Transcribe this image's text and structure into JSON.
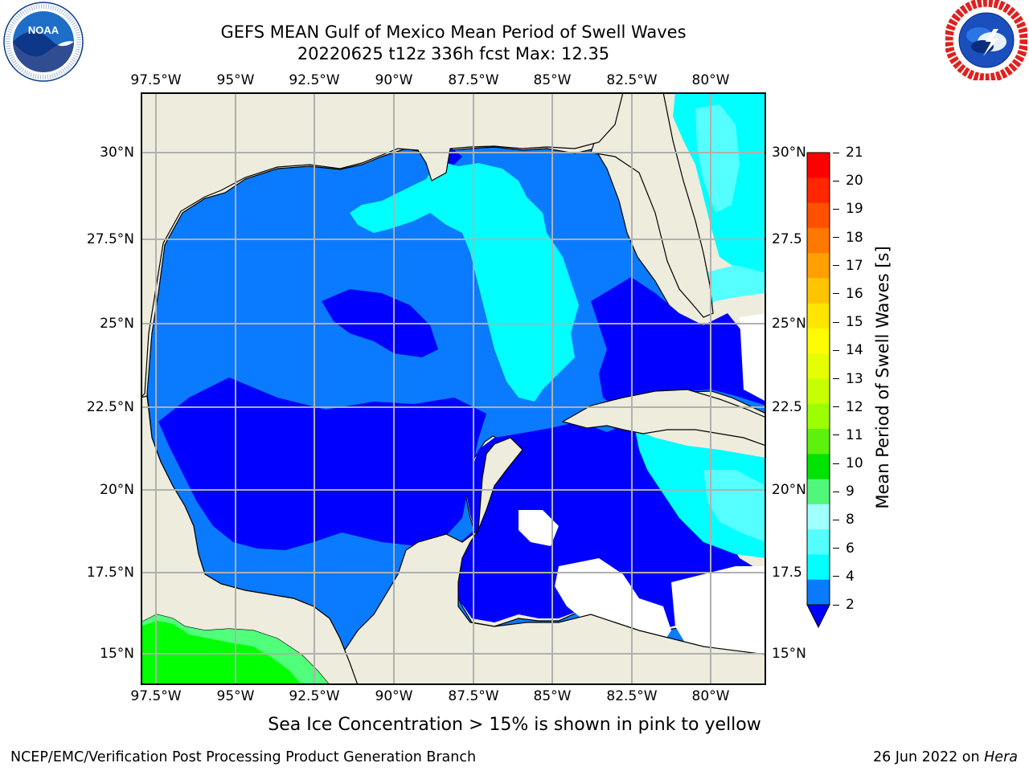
{
  "title": {
    "line1": "GEFS MEAN Gulf of Mexico Mean Period of Swell Waves",
    "line2": "20220625 t12z 336h fcst   Max: 12.35"
  },
  "logos": {
    "noaa": {
      "text": "NOAA",
      "ring_text": "NATIONAL OCEANIC AND ATMOSPHERIC ADMINISTRATION · U.S. DEPARTMENT OF COMMERCE"
    },
    "nws": {
      "ring_text": "NATIONAL WEATHER SERVICE"
    }
  },
  "map": {
    "lon_ticks": [
      "97.5°W",
      "95°W",
      "92.5°W",
      "90°W",
      "87.5°W",
      "85°W",
      "82.5°W",
      "80°W"
    ],
    "lat_ticks_left": [
      "30°N",
      "27.5°N",
      "25°N",
      "22.5°N",
      "20°N",
      "17.5°N",
      "15°N"
    ],
    "lat_ticks_right": [
      "30°N",
      "27.5",
      "25°N",
      "22.5",
      "20°N",
      "17.5",
      "15°N"
    ],
    "colors": {
      "land": "#eeecdd",
      "ocean_2_4": "#0a7bff",
      "ocean_lt2": "#0000ff",
      "ocean_4_6": "#00ffff",
      "ocean_6_8": "#55ffff",
      "green_10_11": "#00ff00",
      "green_9_10": "#50ff7a",
      "grid": "#b0b0b0"
    }
  },
  "colorbar": {
    "title": "Mean Period of Swell Waves [s]",
    "labels": [
      "21",
      "20",
      "19",
      "18",
      "17",
      "16",
      "15",
      "14",
      "13",
      "12",
      "11",
      "10",
      "9",
      "8",
      "6",
      "4",
      "2"
    ],
    "colors": [
      "#ff0000",
      "#ff2600",
      "#ff5000",
      "#ff7800",
      "#ffa000",
      "#ffc400",
      "#ffe500",
      "#fffb00",
      "#e5ff00",
      "#c8ff00",
      "#9bff00",
      "#5ef10d",
      "#00e300",
      "#50f77a",
      "#a0ffff",
      "#55ffff",
      "#00ffff",
      "#0a7bff"
    ],
    "extend_color": "#0000ff"
  },
  "note": "Sea Ice Concentration > 15% is shown in pink to yellow",
  "footer": {
    "left": "NCEP/EMC/Verification Post Processing Product Generation Branch",
    "right_date": "26 Jun 2022 on ",
    "right_machine": "Hera"
  }
}
